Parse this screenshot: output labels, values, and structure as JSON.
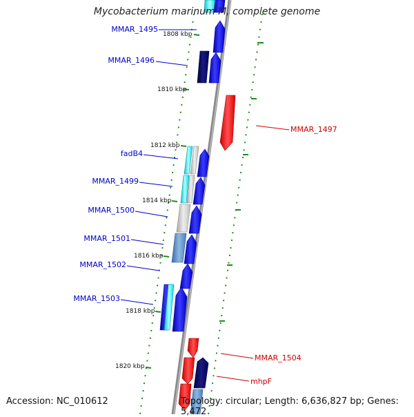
{
  "title": "Mycobacterium marinum M, complete genome",
  "footer": {
    "accession": "Accession: NC_010612",
    "summary": "Topology: circular; Length: 6,636,827 bp; Genes: 5,472"
  },
  "colors": {
    "forward_gene_label": "#0000cc",
    "reverse_gene_label": "#cc0000",
    "backbone": "#808080",
    "tick": "#1a8c1a"
  },
  "kbp_labels": [
    "1808 kbp",
    "1810 kbp",
    "1812 kbp",
    "1814 kbp",
    "1816 kbp",
    "1818 kbp",
    "1820 kbp"
  ],
  "gene_labels": {
    "left": [
      "MMAR_1495",
      "MMAR_1496",
      "fadB4",
      "MMAR_1499",
      "MMAR_1500",
      "MMAR_1501",
      "MMAR_1502",
      "MMAR_1503"
    ],
    "right": [
      "MMAR_1497",
      "MMAR_1504",
      "mhpF"
    ]
  }
}
